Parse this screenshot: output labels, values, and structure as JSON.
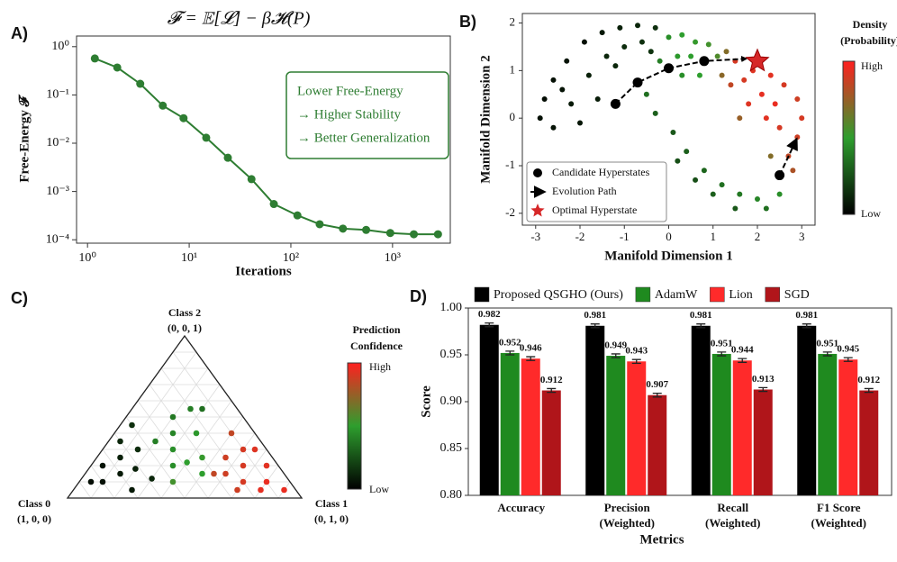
{
  "chart_data": [
    {
      "type": "line",
      "panel": "A)",
      "title": "𝓕 = 𝔼[𝓛] − β𝓗(P)",
      "xlabel": "Iterations",
      "ylabel": "Free-Energy 𝓕",
      "log_x": true,
      "log_y": true,
      "grid": false,
      "color": "#2e7d32",
      "x": [
        1.18,
        1.96,
        3.3,
        5.5,
        8.8,
        14.7,
        24,
        41,
        68,
        116,
        192,
        325,
        550,
        950,
        1620,
        2800
      ],
      "values": [
        0.57,
        0.37,
        0.17,
        0.06,
        0.033,
        0.013,
        0.005,
        0.0018,
        0.00055,
        0.00032,
        0.00021,
        0.00017,
        0.00016,
        0.000138,
        0.00013,
        0.00013
      ],
      "xlim": [
        0.78,
        3700
      ],
      "ylim": [
        8.5e-05,
        1.66
      ],
      "xticks": [
        {
          "value": 1,
          "label": "10⁰"
        },
        {
          "value": 10,
          "label": "10¹"
        },
        {
          "value": 100,
          "label": "10²"
        },
        {
          "value": 1000,
          "label": "10³"
        }
      ],
      "yticks": [
        {
          "value": 1,
          "label": "10⁰"
        },
        {
          "value": 0.1,
          "label": "10⁻¹"
        },
        {
          "value": 0.01,
          "label": "10⁻²"
        },
        {
          "value": 0.001,
          "label": "10⁻³"
        },
        {
          "value": 0.0001,
          "label": "10⁻⁴"
        }
      ],
      "annotation": [
        "Lower Free-Energy",
        "→ Higher Stability",
        "→ Better Generalization"
      ]
    },
    {
      "type": "scatter",
      "panel": "B)",
      "xlabel": "Manifold Dimension 1",
      "ylabel": "Manifold Dimension 2",
      "xlim": [
        -3.3,
        3.3
      ],
      "ylim": [
        -2.25,
        2.2
      ],
      "xticks": [
        -3,
        -2,
        -1,
        0,
        1,
        2,
        3
      ],
      "yticks": [
        -2,
        -1,
        0,
        1,
        2
      ],
      "legend": "lower left",
      "colormap": [
        "#000000",
        "#2e9e2e",
        "#ff2020"
      ],
      "colorbar_title": [
        "Density",
        "(Probability)"
      ],
      "colorbar_labels": [
        "High",
        "Low"
      ],
      "cloud": {
        "x": [
          -1.9,
          -1.5,
          -1.1,
          -0.7,
          -0.3,
          -2.3,
          -2.6,
          -2.8,
          -2.9,
          -2.6,
          -2.2,
          -1.8,
          -1.4,
          -1.0,
          -0.6,
          -2.0,
          -1.6,
          -2.4,
          -1.2,
          -0.4,
          0.0,
          0.3,
          0.6,
          0.9,
          0.2,
          0.5,
          -0.2,
          1.1,
          0.7,
          0.3,
          -0.5,
          -0.3,
          0.1,
          0.4,
          0.8,
          1.2,
          1.6,
          2.0,
          0.6,
          1.0,
          1.5,
          2.2,
          2.5,
          0.2,
          1.5,
          1.9,
          2.3,
          2.6,
          2.9,
          3.0,
          2.9,
          2.7,
          2.4,
          2.1,
          1.7,
          2.5,
          2.2,
          1.8,
          1.4,
          2.8,
          1.3,
          1.2,
          1.6,
          2.3
        ],
        "y": [
          1.6,
          1.8,
          1.9,
          1.95,
          1.9,
          1.2,
          0.8,
          0.4,
          0.0,
          -0.2,
          0.3,
          0.9,
          1.3,
          1.5,
          1.6,
          -0.1,
          0.4,
          0.6,
          1.1,
          1.4,
          1.7,
          1.75,
          1.6,
          1.55,
          1.3,
          1.3,
          1.2,
          1.3,
          0.9,
          0.9,
          0.5,
          0.1,
          -0.3,
          -0.7,
          -1.1,
          -1.4,
          -1.6,
          -1.7,
          -1.3,
          -1.6,
          -1.9,
          -1.9,
          -1.6,
          -0.9,
          1.2,
          1.0,
          0.9,
          0.7,
          0.4,
          0.0,
          -0.4,
          -0.8,
          0.3,
          0.5,
          0.8,
          -0.2,
          0.0,
          0.3,
          0.7,
          -1.1,
          1.4,
          0.9,
          0.0,
          -0.8
        ],
        "density": [
          0.05,
          0.08,
          0.1,
          0.12,
          0.15,
          0.06,
          0.05,
          0.04,
          0.05,
          0.06,
          0.08,
          0.1,
          0.12,
          0.14,
          0.15,
          0.07,
          0.09,
          0.06,
          0.12,
          0.16,
          0.45,
          0.5,
          0.52,
          0.55,
          0.48,
          0.5,
          0.4,
          0.58,
          0.5,
          0.45,
          0.35,
          0.3,
          0.28,
          0.3,
          0.32,
          0.35,
          0.38,
          0.42,
          0.25,
          0.3,
          0.28,
          0.35,
          0.45,
          0.25,
          0.9,
          0.92,
          0.93,
          0.9,
          0.88,
          0.9,
          0.88,
          0.85,
          0.95,
          0.94,
          0.9,
          0.9,
          0.93,
          0.92,
          0.85,
          0.8,
          0.7,
          0.72,
          0.75,
          0.7
        ]
      },
      "series": [
        {
          "name": "Candidate Hyperstates",
          "color": "#000000",
          "x": [
            -1.2,
            -0.7,
            0.0,
            0.8,
            2.5
          ],
          "y": [
            0.3,
            0.75,
            1.05,
            1.2,
            -1.2
          ]
        },
        {
          "name": "Evolution Path",
          "color": "#000000",
          "x": [
            -1.2,
            -0.7,
            0.0,
            0.8,
            1.75,
            null,
            2.5,
            2.88
          ],
          "y": [
            0.3,
            0.75,
            1.05,
            1.2,
            1.25,
            null,
            -1.2,
            -0.45
          ]
        },
        {
          "name": "Optimal Hyperstate",
          "color": "#d62728",
          "x": [
            2.0
          ],
          "y": [
            1.2
          ]
        }
      ]
    },
    {
      "type": "ternary",
      "panel": "C)",
      "colormap": [
        "#000000",
        "#2e9e2e",
        "#ff2020"
      ],
      "corners": [
        [
          "Class 0",
          "(1, 0, 0)"
        ],
        [
          "Class 1",
          "(0, 1, 0)"
        ],
        [
          "Class 2",
          "(0, 0, 1)"
        ]
      ],
      "colorbar_title": [
        "Prediction",
        "Confidence"
      ],
      "colorbar_labels": [
        "High",
        "Low"
      ],
      "p0": [
        0.8,
        0.75,
        0.7,
        0.65,
        0.6,
        0.62,
        0.55,
        0.5,
        0.85,
        0.7,
        0.58,
        0.45,
        0.4,
        0.35,
        0.3,
        0.38,
        0.45,
        0.25,
        0.2,
        0.3,
        0.5,
        0.15,
        0.35,
        0.25,
        0.2,
        0.15,
        0.1,
        0.3,
        0.2,
        0.1,
        0.05,
        0.15,
        0.05,
        0.25,
        0.1,
        0.05
      ],
      "p1": [
        0.1,
        0.05,
        0.15,
        0.1,
        0.05,
        0.2,
        0.15,
        0.05,
        0.05,
        0.25,
        0.3,
        0.2,
        0.3,
        0.25,
        0.2,
        0.4,
        0.35,
        0.35,
        0.25,
        0.45,
        0.4,
        0.3,
        0.5,
        0.6,
        0.7,
        0.65,
        0.8,
        0.55,
        0.55,
        0.6,
        0.75,
        0.8,
        0.9,
        0.7,
        0.5,
        0.65
      ],
      "p2": [
        0.1,
        0.2,
        0.15,
        0.25,
        0.35,
        0.18,
        0.3,
        0.45,
        0.1,
        0.05,
        0.12,
        0.35,
        0.3,
        0.4,
        0.5,
        0.22,
        0.2,
        0.4,
        0.55,
        0.25,
        0.1,
        0.55,
        0.15,
        0.15,
        0.1,
        0.2,
        0.1,
        0.15,
        0.25,
        0.3,
        0.2,
        0.05,
        0.05,
        0.05,
        0.4,
        0.3
      ],
      "confidence": [
        0.05,
        0.06,
        0.08,
        0.1,
        0.12,
        0.1,
        0.14,
        0.15,
        0.04,
        0.08,
        0.12,
        0.4,
        0.45,
        0.42,
        0.38,
        0.5,
        0.45,
        0.48,
        0.4,
        0.52,
        0.55,
        0.35,
        0.5,
        0.88,
        0.9,
        0.9,
        0.95,
        0.85,
        0.88,
        0.9,
        0.93,
        0.94,
        0.95,
        0.88,
        0.85,
        0.92
      ]
    },
    {
      "type": "bar",
      "panel": "D)",
      "xlabel": "Metrics",
      "ylabel": "Score",
      "categories": [
        [
          "Accuracy"
        ],
        [
          "Precision",
          "(Weighted)"
        ],
        [
          "Recall",
          "(Weighted)"
        ],
        [
          "F1 Score",
          "(Weighted)"
        ]
      ],
      "ylim": [
        0.8,
        1.0
      ],
      "yticks": [
        {
          "value": 0.8,
          "label": "0.80"
        },
        {
          "value": 0.85,
          "label": "0.85"
        },
        {
          "value": 0.9,
          "label": "0.90"
        },
        {
          "value": 0.95,
          "label": "0.95"
        },
        {
          "value": 1.0,
          "label": "1.00"
        }
      ],
      "legend": "top",
      "series": [
        {
          "name": "Proposed QSGHO (Ours)",
          "color": "#000000",
          "values": [
            0.982,
            0.981,
            0.981,
            0.981
          ],
          "errors": [
            0.002,
            0.002,
            0.002,
            0.002
          ]
        },
        {
          "name": "AdamW",
          "color": "#1f8a1f",
          "values": [
            0.952,
            0.949,
            0.951,
            0.951
          ],
          "errors": [
            0.002,
            0.002,
            0.002,
            0.002
          ]
        },
        {
          "name": "Lion",
          "color": "#ff2a2a",
          "values": [
            0.946,
            0.943,
            0.944,
            0.945
          ],
          "errors": [
            0.002,
            0.002,
            0.002,
            0.002
          ]
        },
        {
          "name": "SGD",
          "color": "#b0151a",
          "values": [
            0.912,
            0.907,
            0.913,
            0.912
          ],
          "errors": [
            0.002,
            0.002,
            0.002,
            0.002
          ]
        }
      ]
    }
  ]
}
